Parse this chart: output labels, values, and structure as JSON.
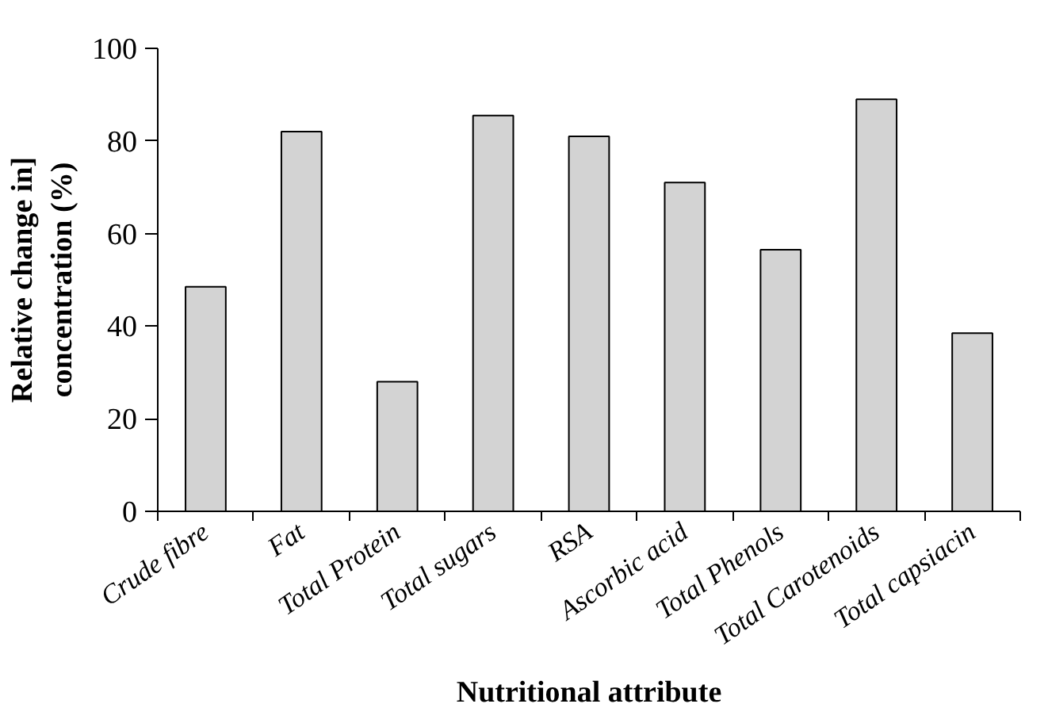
{
  "chart_data": {
    "type": "bar",
    "xlabel": "Nutritional attribute",
    "ylabel": "Relative change in]\nconcentration (%)",
    "categories": [
      "Crude fibre",
      "Fat",
      "Total Protein",
      "Total sugars",
      "RSA",
      "Ascorbic acid",
      "Total Phenols",
      "Total Carotenoids",
      "Total capsiacin"
    ],
    "values": [
      48.5,
      82,
      28,
      85.5,
      81,
      71,
      56.5,
      89,
      38.5
    ],
    "color": "#d3d3d3",
    "ylim": [
      0,
      100
    ],
    "yticks": [
      0,
      20,
      40,
      60,
      80,
      100
    ],
    "grid": false
  }
}
